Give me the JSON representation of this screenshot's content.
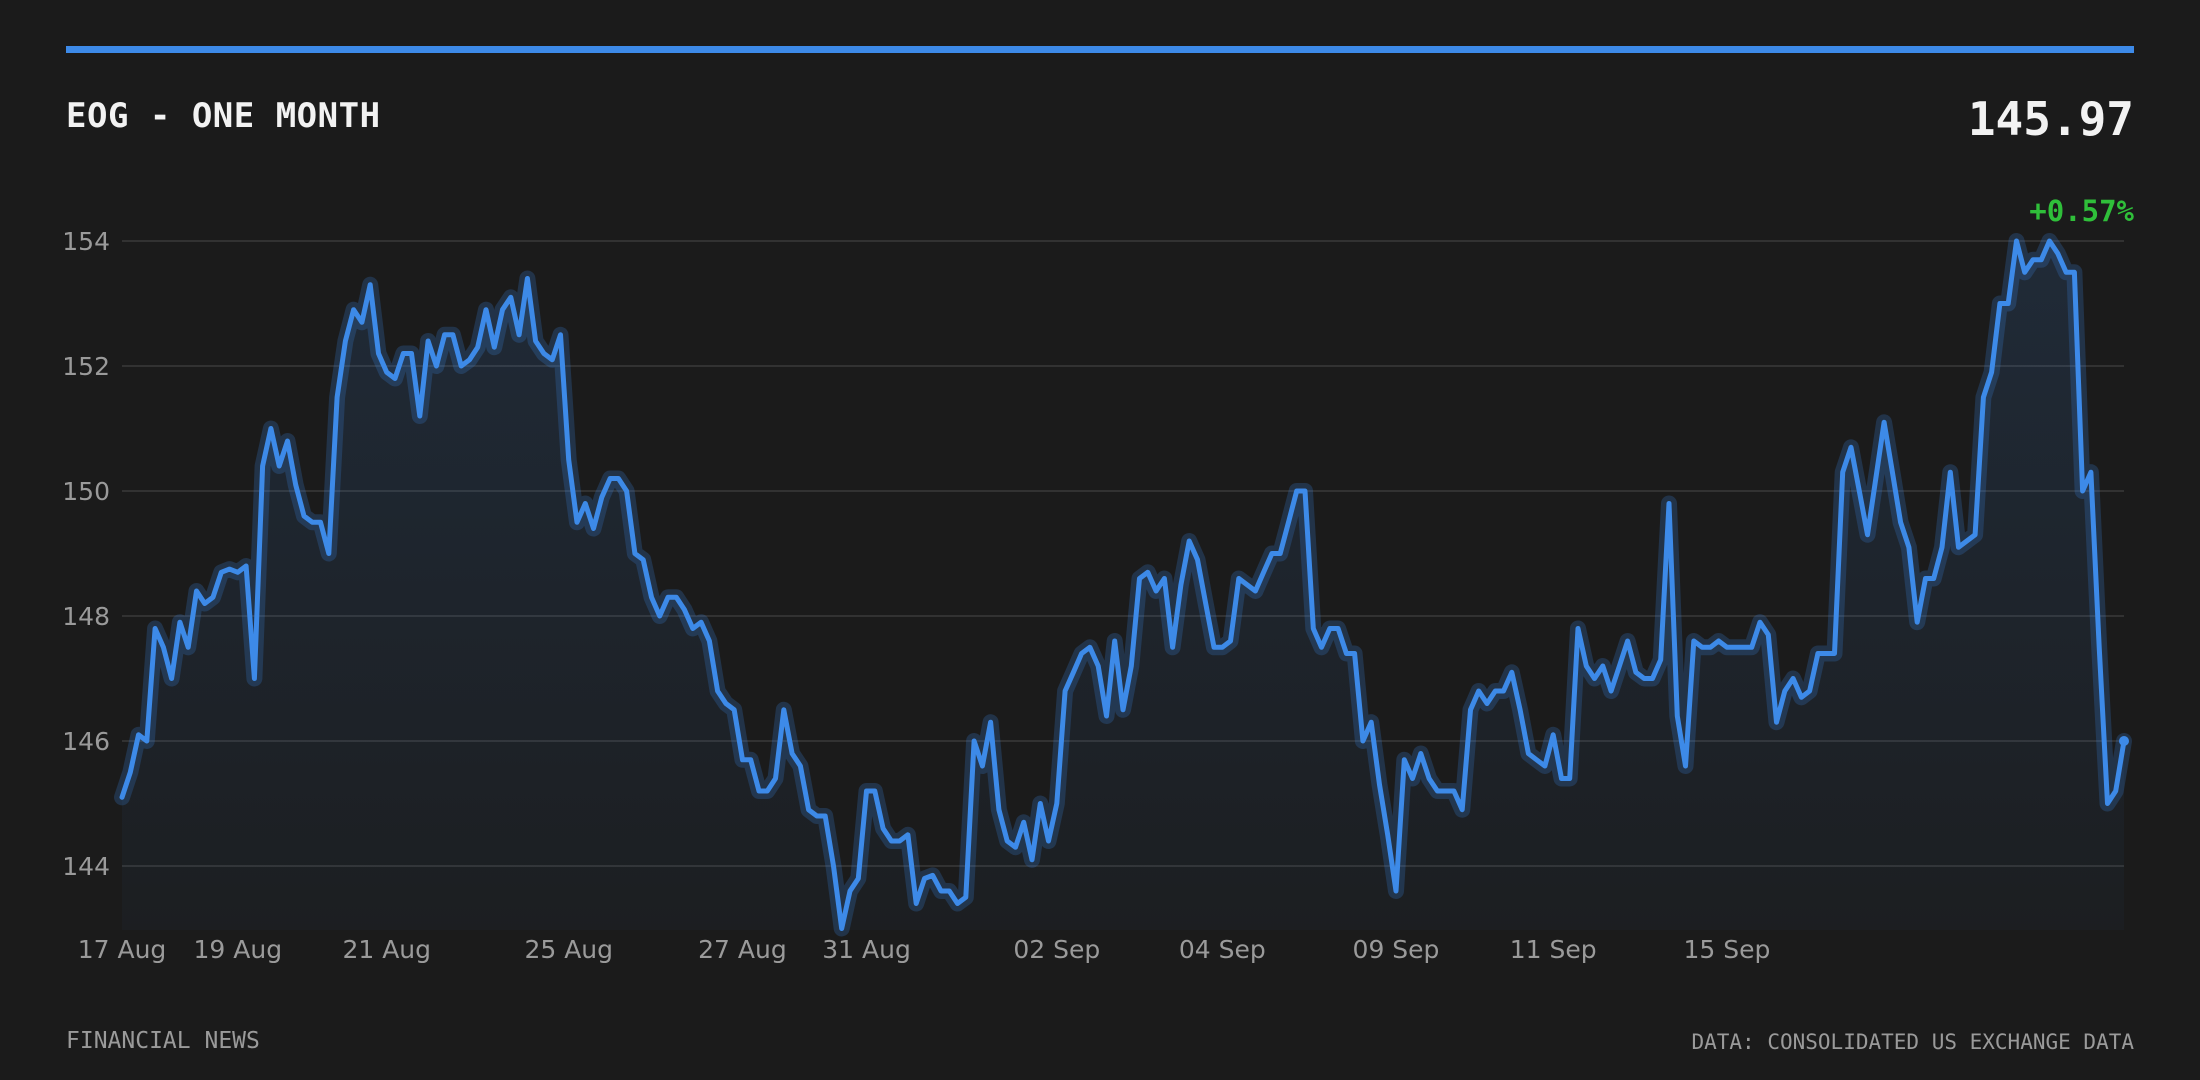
{
  "header": {
    "title": "EOG - ONE MONTH",
    "price": "145.97",
    "change": "+0.57%"
  },
  "footer": {
    "source_left": "FINANCIAL NEWS",
    "source_right": "DATA: CONSOLIDATED US EXCHANGE DATA"
  },
  "colors": {
    "background": "#1b1b1b",
    "accent": "#3d8ae8",
    "positive": "#2fbf3a",
    "grid": "#3a3a3a",
    "tick_text": "#9a9a9a"
  },
  "chart_data": {
    "type": "area",
    "title": "EOG - ONE MONTH",
    "xlabel": "",
    "ylabel": "",
    "ylim": [
      143,
      155
    ],
    "yticks": [
      144,
      146,
      148,
      150,
      152,
      154
    ],
    "grid": true,
    "x_tick_labels": [
      {
        "label": "17 Aug",
        "index": 0
      },
      {
        "label": "19 Aug",
        "index": 14
      },
      {
        "label": "21 Aug",
        "index": 32
      },
      {
        "label": "25 Aug",
        "index": 54
      },
      {
        "label": "27 Aug",
        "index": 75
      },
      {
        "label": "31 Aug",
        "index": 90
      },
      {
        "label": "02 Sep",
        "index": 113
      },
      {
        "label": "04 Sep",
        "index": 133
      },
      {
        "label": "09 Sep",
        "index": 154
      },
      {
        "label": "11 Sep",
        "index": 173
      },
      {
        "label": "15 Sep",
        "index": 194
      }
    ],
    "series": [
      {
        "values": [
          145.1,
          145.5,
          146.1,
          146.0,
          147.8,
          147.5,
          147.0,
          147.9,
          147.5,
          148.4,
          148.2,
          148.3,
          148.7,
          148.75,
          148.7,
          148.8,
          147.0,
          150.4,
          151.0,
          150.4,
          150.8,
          150.1,
          149.6,
          149.5,
          149.5,
          149.0,
          151.5,
          152.4,
          152.9,
          152.7,
          153.3,
          152.2,
          151.9,
          151.8,
          152.2,
          152.2,
          151.2,
          152.4,
          152.0,
          152.5,
          152.5,
          152.0,
          152.1,
          152.3,
          152.9,
          152.3,
          152.9,
          153.1,
          152.5,
          153.4,
          152.4,
          152.2,
          152.1,
          152.5,
          150.5,
          149.5,
          149.8,
          149.4,
          149.9,
          150.2,
          150.2,
          150.0,
          149.0,
          148.9,
          148.3,
          148.0,
          148.3,
          148.3,
          148.1,
          147.8,
          147.9,
          147.6,
          146.8,
          146.6,
          146.5,
          145.7,
          145.7,
          145.2,
          145.2,
          145.4,
          146.5,
          145.8,
          145.6,
          144.9,
          144.8,
          144.8,
          144.0,
          143.0,
          143.6,
          143.8,
          145.2,
          145.2,
          144.6,
          144.4,
          144.4,
          144.5,
          143.4,
          143.8,
          143.85,
          143.6,
          143.6,
          143.4,
          143.5,
          146.0,
          145.6,
          146.3,
          144.9,
          144.4,
          144.3,
          144.7,
          144.1,
          145.0,
          144.4,
          145.0,
          146.8,
          147.1,
          147.4,
          147.5,
          147.2,
          146.4,
          147.6,
          146.5,
          147.2,
          148.6,
          148.7,
          148.4,
          148.6,
          147.5,
          148.5,
          149.2,
          148.9,
          148.2,
          147.5,
          147.5,
          147.6,
          148.6,
          148.5,
          148.4,
          148.7,
          149.0,
          149.0,
          149.5,
          150.0,
          150.0,
          147.8,
          147.5,
          147.8,
          147.8,
          147.4,
          147.4,
          146.0,
          146.3,
          145.3,
          144.5,
          143.6,
          145.7,
          145.4,
          145.8,
          145.4,
          145.2,
          145.2,
          145.2,
          144.9,
          146.5,
          146.8,
          146.6,
          146.8,
          146.8,
          147.1,
          146.5,
          145.8,
          145.7,
          145.6,
          146.1,
          145.4,
          145.4,
          147.8,
          147.2,
          147.0,
          147.2,
          146.8,
          147.2,
          147.6,
          147.1,
          147.0,
          147.0,
          147.3,
          149.8,
          146.4,
          145.6,
          147.6,
          147.5,
          147.5,
          147.6,
          147.5,
          147.5,
          147.5,
          147.5,
          147.9,
          147.7,
          146.3,
          146.8,
          147.0,
          146.7,
          146.8,
          147.4,
          147.4,
          147.4,
          150.3,
          150.7,
          150.0,
          149.3,
          150.2,
          151.1,
          150.3,
          149.5,
          149.1,
          147.9,
          148.6,
          148.6,
          149.1,
          150.3,
          149.1,
          149.2,
          149.3,
          151.5,
          151.9,
          153.0,
          153.0,
          154.0,
          153.5,
          153.7,
          153.7,
          154.0,
          153.8,
          153.5,
          153.5,
          150.0,
          150.3,
          147.5,
          145.0,
          145.2,
          146.0
        ]
      }
    ]
  }
}
